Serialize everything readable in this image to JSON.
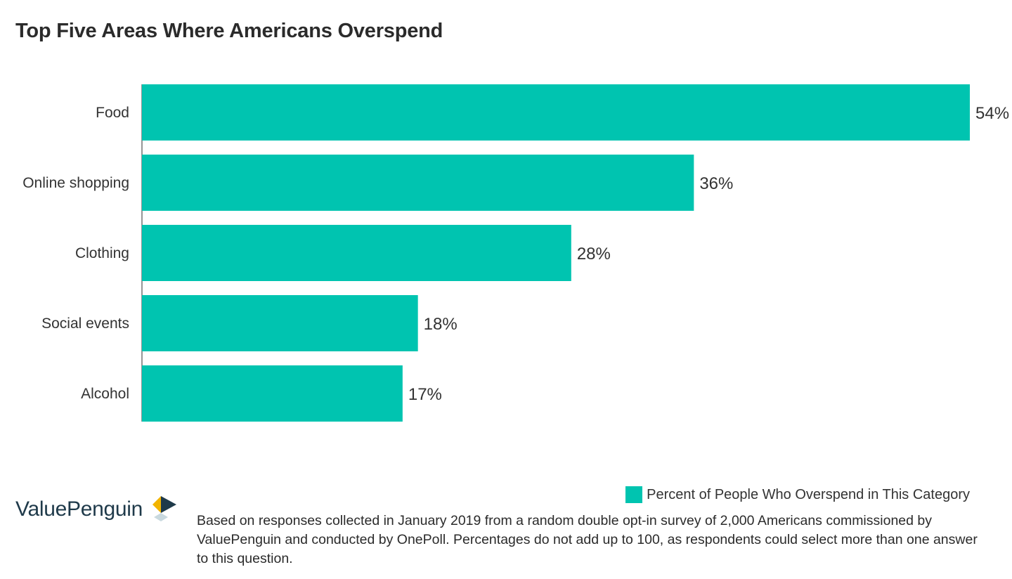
{
  "title": "Top Five Areas Where Americans Overspend",
  "chart_data": {
    "type": "bar",
    "orientation": "horizontal",
    "categories": [
      "Food",
      "Online shopping",
      "Clothing",
      "Social events",
      "Alcohol"
    ],
    "series": [
      {
        "name": "Percent of People Who Overspend in This Category",
        "values": [
          54,
          36,
          28,
          18,
          17
        ],
        "labels": [
          "54%",
          "36%",
          "28%",
          "18%",
          "17%"
        ],
        "color": "#00c4b0"
      }
    ],
    "xlim": [
      0,
      54
    ],
    "unit": "%",
    "grid": false,
    "legend_position": "bottom-right"
  },
  "legend": {
    "label": "Percent of People Who Overspend in This Category"
  },
  "brand": {
    "name": "ValuePenguin",
    "text_color": "#1f3a4a",
    "mark_colors": [
      "#f2b400",
      "#1f3a4a",
      "#c9d9df"
    ]
  },
  "footnote": "Based on responses collected in January 2019 from a random double opt-in survey of 2,000 Americans commissioned by ValuePenguin and conducted by OnePoll. Percentages do not add up to 100, as respondents could select more than one answer to this question."
}
